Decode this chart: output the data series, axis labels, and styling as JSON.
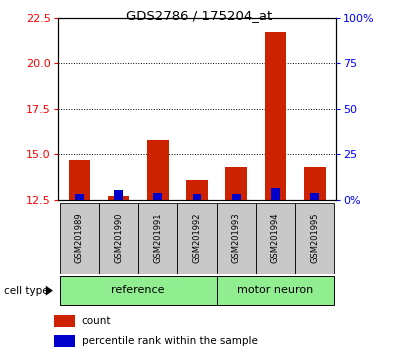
{
  "title": "GDS2786 / 175204_at",
  "samples": [
    "GSM201989",
    "GSM201990",
    "GSM201991",
    "GSM201992",
    "GSM201993",
    "GSM201994",
    "GSM201995"
  ],
  "count_values": [
    14.7,
    12.7,
    15.8,
    13.6,
    14.3,
    21.7,
    14.3
  ],
  "percentile_values": [
    3.5,
    5.5,
    4.0,
    3.5,
    3.5,
    6.5,
    4.0
  ],
  "ref_count": 4,
  "ylim_left": [
    12.5,
    22.5
  ],
  "ylim_right": [
    0,
    100
  ],
  "yticks_left": [
    12.5,
    15.0,
    17.5,
    20.0,
    22.5
  ],
  "yticks_right": [
    0,
    25,
    50,
    75,
    100
  ],
  "ytick_labels_right": [
    "0%",
    "25",
    "50",
    "75",
    "100%"
  ],
  "grid_lines": [
    15.0,
    17.5,
    20.0
  ],
  "bar_color_red": "#cc2200",
  "bar_color_blue": "#0000cc",
  "bar_width": 0.55,
  "blue_bar_width": 0.22,
  "background_color": "#ffffff",
  "sample_box_color": "#c8c8c8",
  "group_box_color": "#90ee90",
  "label_count": "count",
  "label_percentile": "percentile rank within the sample",
  "cell_type_label": "cell type",
  "baseline": 12.5,
  "ref_label": "reference",
  "mn_label": "motor neuron"
}
